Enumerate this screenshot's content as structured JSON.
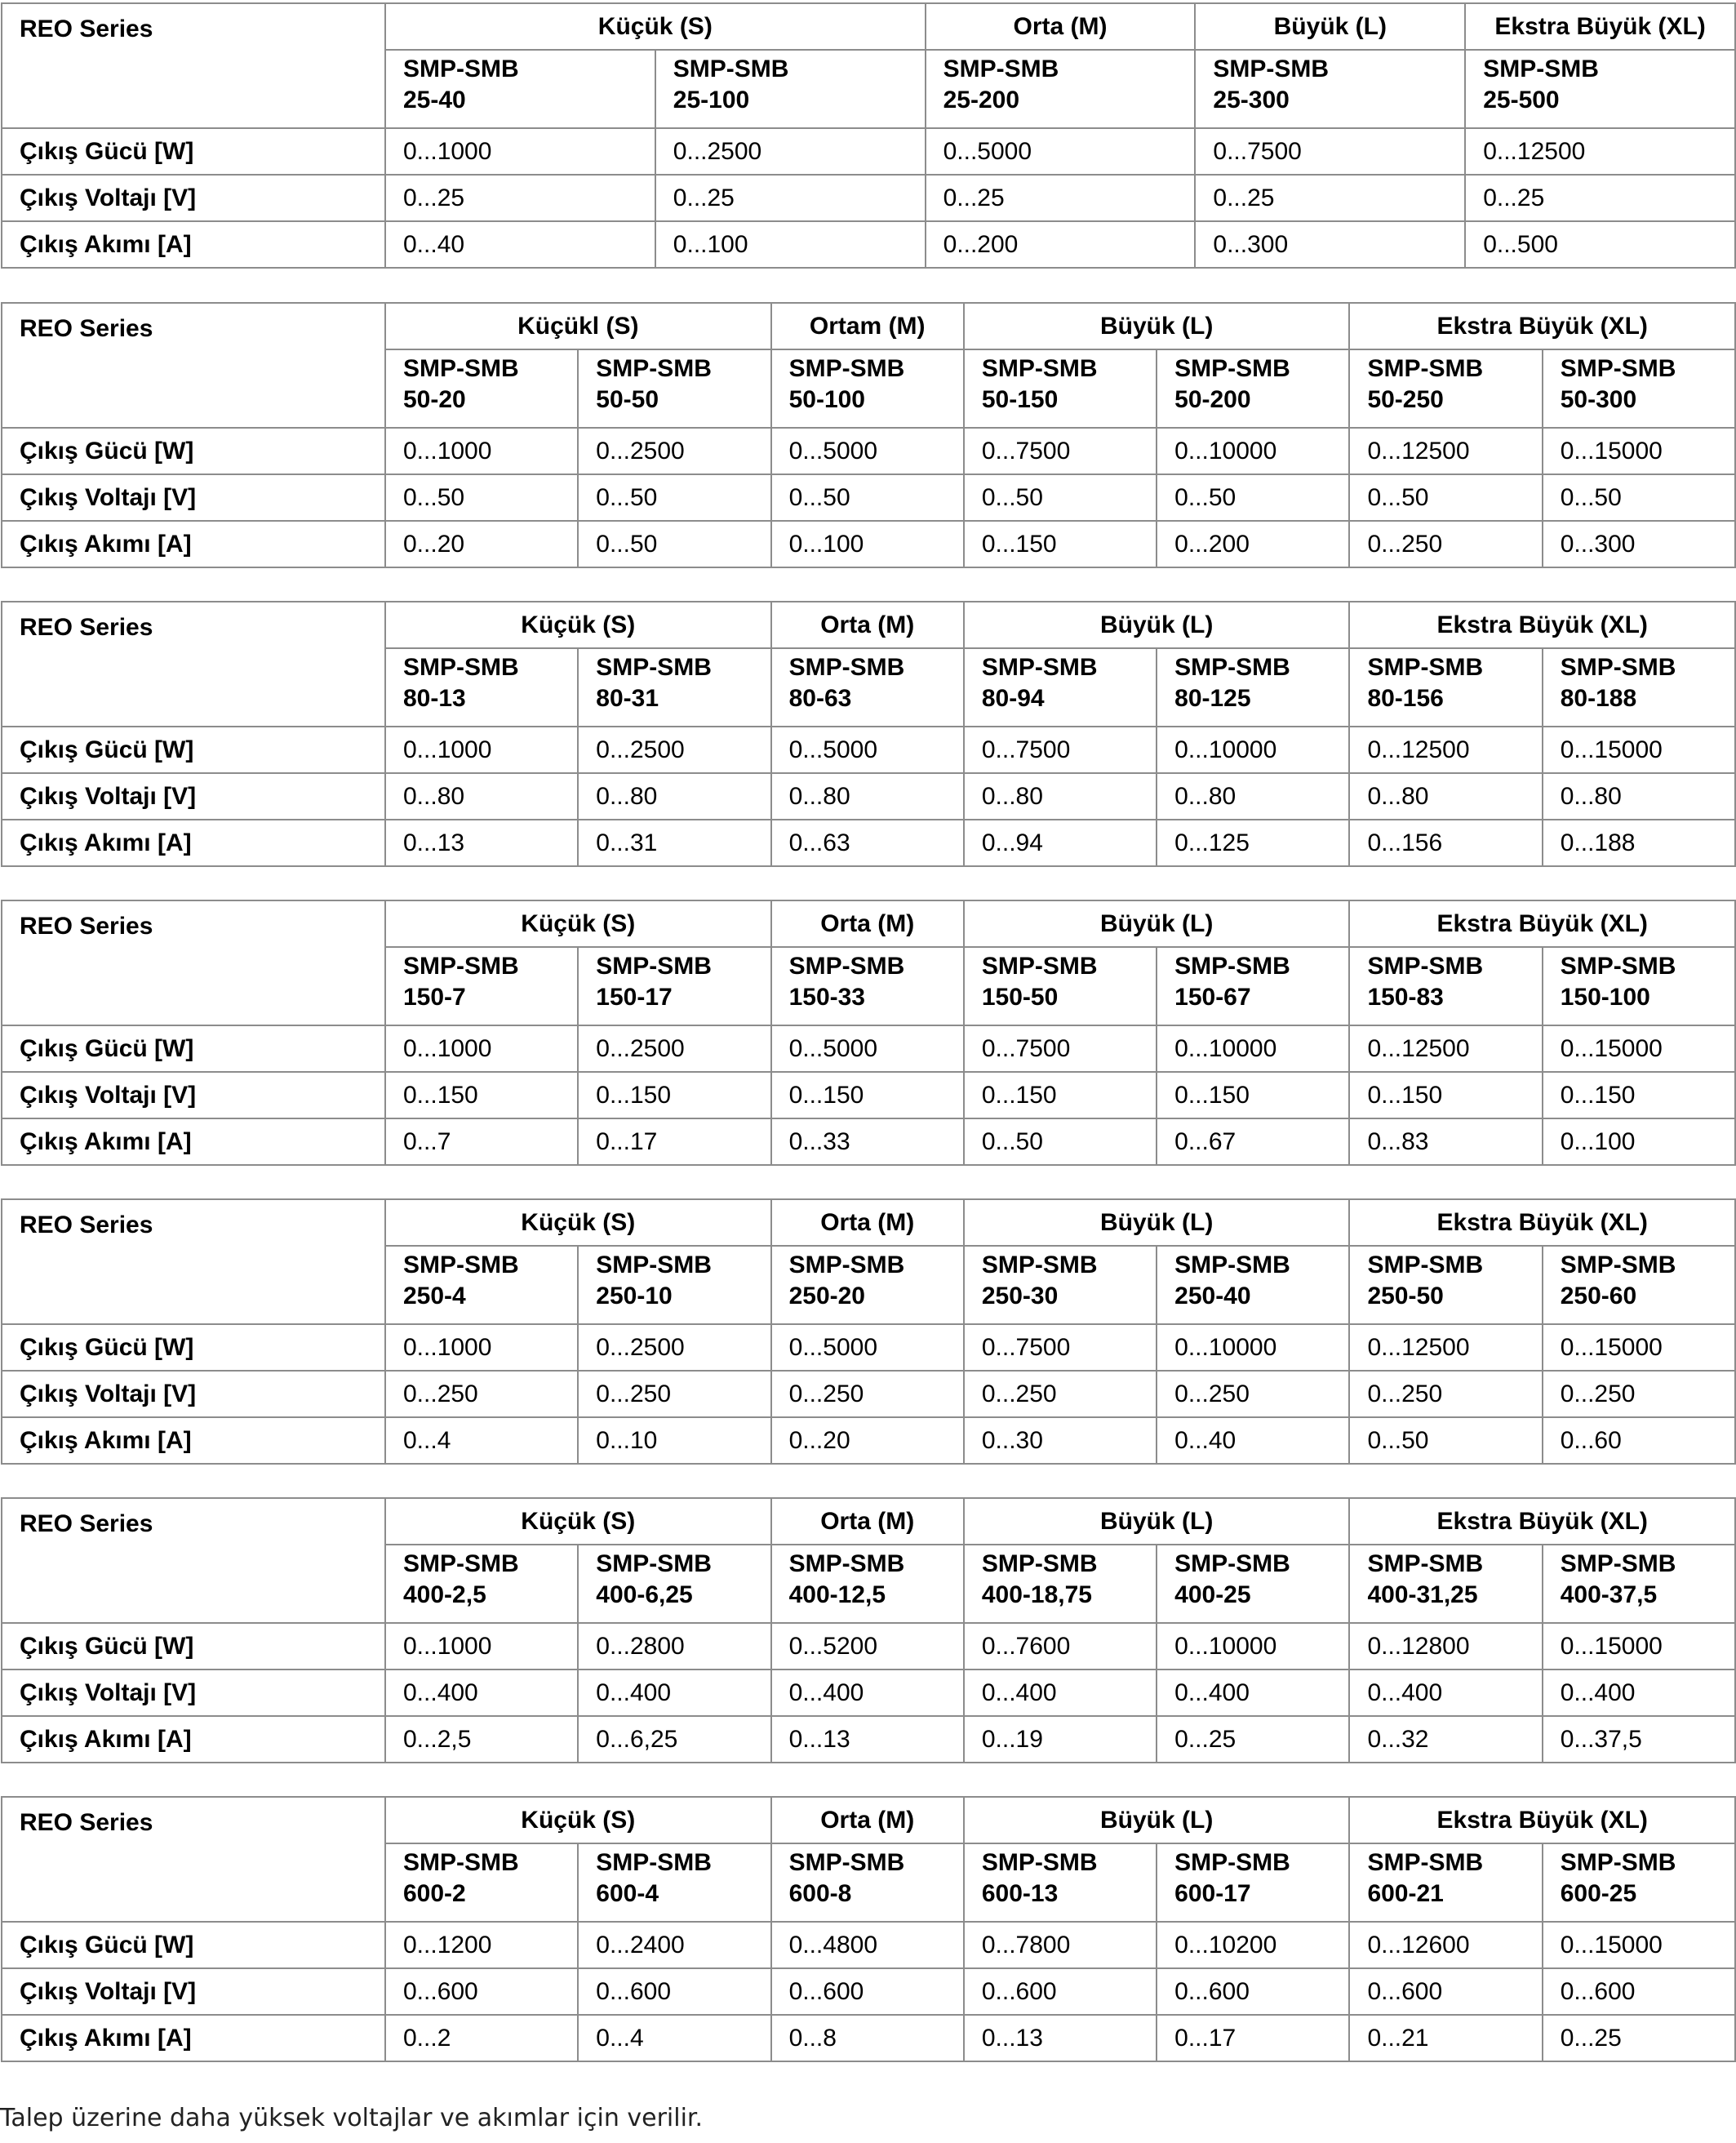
{
  "row_labels": {
    "power": "Çıkış Gücü [W]",
    "voltage": "Çıkış Voltajı [V]",
    "current": "Çıkış Akımı [A]"
  },
  "tables": [
    {
      "series": "REO Series",
      "groups": [
        {
          "label": "Küçük (S)",
          "span": 2
        },
        {
          "label": "Orta (M)",
          "span": 1
        },
        {
          "label": "Büyük (L)",
          "span": 1
        },
        {
          "label": "Ekstra Büyük (XL)",
          "span": 1
        }
      ],
      "models": [
        [
          "SMP-SMB",
          "25-40"
        ],
        [
          "SMP-SMB",
          "25-100"
        ],
        [
          "SMP-SMB",
          "25-200"
        ],
        [
          "SMP-SMB",
          "25-300"
        ],
        [
          "SMP-SMB",
          "25-500"
        ]
      ],
      "power": [
        "0...1000",
        "0...2500",
        "0...5000",
        "0...7500",
        "0...12500"
      ],
      "voltage": [
        "0...25",
        "0...25",
        "0...25",
        "0...25",
        "0...25"
      ],
      "current": [
        "0...40",
        "0...100",
        "0...200",
        "0...300",
        "0...500"
      ]
    },
    {
      "series": "REO Series",
      "groups": [
        {
          "label": "Küçükl (S)",
          "span": 2
        },
        {
          "label": "Ortam (M)",
          "span": 1
        },
        {
          "label": "Büyük (L)",
          "span": 2
        },
        {
          "label": "Ekstra Büyük (XL)",
          "span": 2
        }
      ],
      "models": [
        [
          "SMP-SMB",
          "50-20"
        ],
        [
          "SMP-SMB",
          "50-50"
        ],
        [
          "SMP-SMB",
          "50-100"
        ],
        [
          "SMP-SMB",
          "50-150"
        ],
        [
          "SMP-SMB",
          "50-200"
        ],
        [
          "SMP-SMB",
          "50-250"
        ],
        [
          "SMP-SMB",
          "50-300"
        ]
      ],
      "power": [
        "0...1000",
        "0...2500",
        "0...5000",
        "0...7500",
        "0...10000",
        "0...12500",
        "0...15000"
      ],
      "voltage": [
        "0...50",
        "0...50",
        "0...50",
        "0...50",
        "0...50",
        "0...50",
        "0...50"
      ],
      "current": [
        "0...20",
        "0...50",
        "0...100",
        "0...150",
        "0...200",
        "0...250",
        "0...300"
      ]
    },
    {
      "series": "REO Series",
      "groups": [
        {
          "label": "Küçük (S)",
          "span": 2
        },
        {
          "label": "Orta (M)",
          "span": 1
        },
        {
          "label": "Büyük (L)",
          "span": 2
        },
        {
          "label": "Ekstra Büyük (XL)",
          "span": 2
        }
      ],
      "models": [
        [
          "SMP-SMB",
          "80-13"
        ],
        [
          "SMP-SMB",
          "80-31"
        ],
        [
          "SMP-SMB",
          "80-63"
        ],
        [
          "SMP-SMB",
          "80-94"
        ],
        [
          "SMP-SMB",
          "80-125"
        ],
        [
          "SMP-SMB",
          "80-156"
        ],
        [
          "SMP-SMB",
          "80-188"
        ]
      ],
      "power": [
        "0...1000",
        "0...2500",
        "0...5000",
        "0...7500",
        "0...10000",
        "0...12500",
        "0...15000"
      ],
      "voltage": [
        "0...80",
        "0...80",
        "0...80",
        "0...80",
        "0...80",
        "0...80",
        "0...80"
      ],
      "current": [
        "0...13",
        "0...31",
        "0...63",
        "0...94",
        "0...125",
        "0...156",
        "0...188"
      ]
    },
    {
      "series": "REO Series",
      "groups": [
        {
          "label": "Küçük (S)",
          "span": 2
        },
        {
          "label": "Orta (M)",
          "span": 1
        },
        {
          "label": "Büyük (L)",
          "span": 2
        },
        {
          "label": "Ekstra Büyük (XL)",
          "span": 2
        }
      ],
      "models": [
        [
          "SMP-SMB",
          "150-7"
        ],
        [
          "SMP-SMB",
          "150-17"
        ],
        [
          "SMP-SMB",
          "150-33"
        ],
        [
          "SMP-SMB",
          "150-50"
        ],
        [
          "SMP-SMB",
          "150-67"
        ],
        [
          "SMP-SMB",
          "150-83"
        ],
        [
          "SMP-SMB",
          "150-100"
        ]
      ],
      "power": [
        "0...1000",
        "0...2500",
        "0...5000",
        "0...7500",
        "0...10000",
        "0...12500",
        "0...15000"
      ],
      "voltage": [
        "0...150",
        "0...150",
        "0...150",
        "0...150",
        "0...150",
        "0...150",
        "0...150"
      ],
      "current": [
        "0...7",
        "0...17",
        "0...33",
        "0...50",
        "0...67",
        "0...83",
        "0...100"
      ]
    },
    {
      "series": "REO Series",
      "groups": [
        {
          "label": "Küçük (S)",
          "span": 2
        },
        {
          "label": "Orta (M)",
          "span": 1
        },
        {
          "label": "Büyük (L)",
          "span": 2
        },
        {
          "label": "Ekstra Büyük (XL)",
          "span": 2
        }
      ],
      "models": [
        [
          "SMP-SMB",
          "250-4"
        ],
        [
          "SMP-SMB",
          "250-10"
        ],
        [
          "SMP-SMB",
          "250-20"
        ],
        [
          "SMP-SMB",
          "250-30"
        ],
        [
          "SMP-SMB",
          "250-40"
        ],
        [
          "SMP-SMB",
          "250-50"
        ],
        [
          "SMP-SMB",
          "250-60"
        ]
      ],
      "power": [
        "0...1000",
        "0...2500",
        "0...5000",
        "0...7500",
        "0...10000",
        "0...12500",
        "0...15000"
      ],
      "voltage": [
        "0...250",
        "0...250",
        "0...250",
        "0...250",
        "0...250",
        "0...250",
        "0...250"
      ],
      "current": [
        "0...4",
        "0...10",
        "0...20",
        "0...30",
        "0...40",
        "0...50",
        "0...60"
      ]
    },
    {
      "series": "REO Series",
      "groups": [
        {
          "label": "Küçük (S)",
          "span": 2
        },
        {
          "label": "Orta (M)",
          "span": 1
        },
        {
          "label": "Büyük (L)",
          "span": 2
        },
        {
          "label": "Ekstra Büyük (XL)",
          "span": 2
        }
      ],
      "models": [
        [
          "SMP-SMB",
          "400-2,5"
        ],
        [
          "SMP-SMB",
          "400-6,25"
        ],
        [
          "SMP-SMB",
          "400-12,5"
        ],
        [
          "SMP-SMB",
          "400-18,75"
        ],
        [
          "SMP-SMB",
          "400-25"
        ],
        [
          "SMP-SMB",
          "400-31,25"
        ],
        [
          "SMP-SMB",
          "400-37,5"
        ]
      ],
      "power": [
        "0...1000",
        "0...2800",
        "0...5200",
        "0...7600",
        "0...10000",
        "0...12800",
        "0...15000"
      ],
      "voltage": [
        "0...400",
        "0...400",
        "0...400",
        "0...400",
        "0...400",
        "0...400",
        "0...400"
      ],
      "current": [
        "0...2,5",
        "0...6,25",
        "0...13",
        "0...19",
        "0...25",
        "0...32",
        "0...37,5"
      ]
    },
    {
      "series": "REO Series",
      "groups": [
        {
          "label": "Küçük (S)",
          "span": 2
        },
        {
          "label": "Orta (M)",
          "span": 1
        },
        {
          "label": "Büyük (L)",
          "span": 2
        },
        {
          "label": "Ekstra Büyük (XL)",
          "span": 2
        }
      ],
      "models": [
        [
          "SMP-SMB",
          "600-2"
        ],
        [
          "SMP-SMB",
          "600-4"
        ],
        [
          "SMP-SMB",
          "600-8"
        ],
        [
          "SMP-SMB",
          "600-13"
        ],
        [
          "SMP-SMB",
          "600-17"
        ],
        [
          "SMP-SMB",
          "600-21"
        ],
        [
          "SMP-SMB",
          "600-25"
        ]
      ],
      "power": [
        "0...1200",
        "0...2400",
        "0...4800",
        "0...7800",
        "0...10200",
        "0...12600",
        "0...15000"
      ],
      "voltage": [
        "0...600",
        "0...600",
        "0...600",
        "0...600",
        "0...600",
        "0...600",
        "0...600"
      ],
      "current": [
        "0...2",
        "0...4",
        "0...8",
        "0...13",
        "0...17",
        "0...21",
        "0...25"
      ]
    }
  ],
  "footnote": "Talep üzerine daha yüksek voltajlar ve akımlar için verilir."
}
